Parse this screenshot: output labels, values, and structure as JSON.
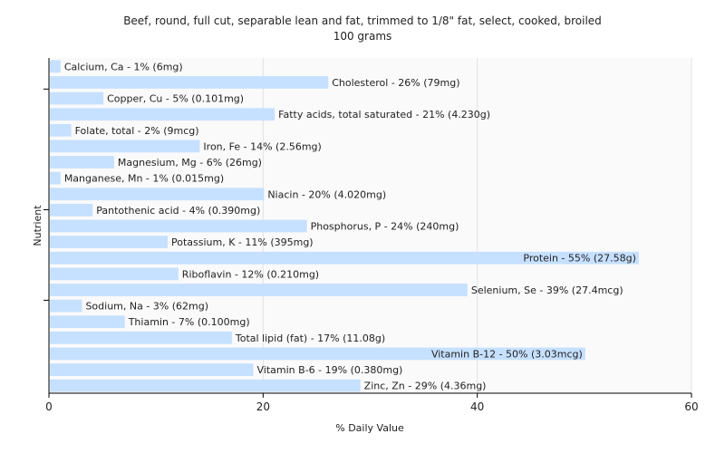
{
  "chart_data": {
    "type": "bar",
    "orientation": "horizontal",
    "title": "Beef, round, full cut, separable lean and fat, trimmed to 1/8\" fat, select, cooked, broiled",
    "subtitle": "100 grams",
    "xlabel": "% Daily Value",
    "ylabel": "Nutrient",
    "xlim": [
      0,
      60
    ],
    "xticks": [
      "0",
      "20",
      "40",
      "60"
    ],
    "grid": true,
    "bar_color": "#c6e0ff",
    "categories": [
      "Calcium, Ca",
      "Cholesterol",
      "Copper, Cu",
      "Fatty acids, total saturated",
      "Folate, total",
      "Iron, Fe",
      "Magnesium, Mg",
      "Manganese, Mn",
      "Niacin",
      "Pantothenic acid",
      "Phosphorus, P",
      "Potassium, K",
      "Protein",
      "Riboflavin",
      "Selenium, Se",
      "Sodium, Na",
      "Thiamin",
      "Total lipid (fat)",
      "Vitamin B-12",
      "Vitamin B-6",
      "Zinc, Zn"
    ],
    "values": [
      1,
      26,
      5,
      21,
      2,
      14,
      6,
      1,
      20,
      4,
      24,
      11,
      55,
      12,
      39,
      3,
      7,
      17,
      50,
      19,
      29
    ],
    "labels": [
      "Calcium, Ca - 1% (6mg)",
      "Cholesterol - 26% (79mg)",
      "Copper, Cu - 5% (0.101mg)",
      "Fatty acids, total saturated - 21% (4.230g)",
      "Folate, total - 2% (9mcg)",
      "Iron, Fe - 14% (2.56mg)",
      "Magnesium, Mg - 6% (26mg)",
      "Manganese, Mn - 1% (0.015mg)",
      "Niacin - 20% (4.020mg)",
      "Pantothenic acid - 4% (0.390mg)",
      "Phosphorus, P - 24% (240mg)",
      "Potassium, K - 11% (395mg)",
      "Protein - 55% (27.58g)",
      "Riboflavin - 12% (0.210mg)",
      "Selenium, Se - 39% (27.4mcg)",
      "Sodium, Na - 3% (62mg)",
      "Thiamin - 7% (0.100mg)",
      "Total lipid (fat) - 17% (11.08g)",
      "Vitamin B-12 - 50% (3.03mcg)",
      "Vitamin B-6 - 19% (0.380mg)",
      "Zinc, Zn - 29% (4.36mg)"
    ]
  }
}
